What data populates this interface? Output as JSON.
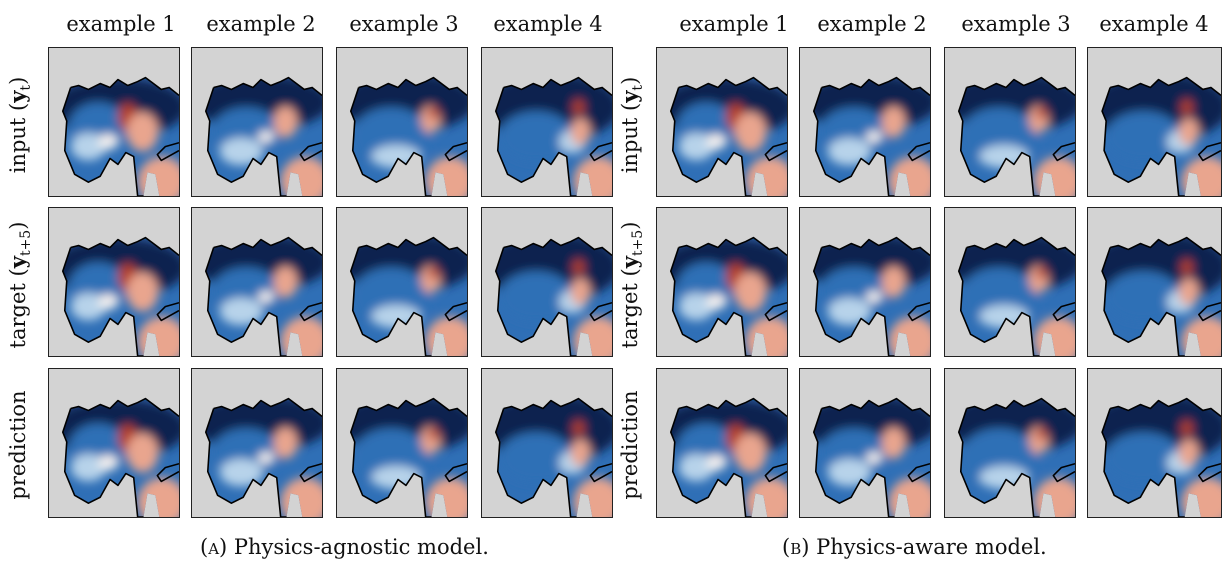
{
  "columns": [
    "example 1",
    "example 2",
    "example 3",
    "example 4"
  ],
  "rows": [
    {
      "base": "input",
      "var": "y",
      "sub": "t"
    },
    {
      "base": "target",
      "var": "y",
      "sub": "t+5"
    },
    {
      "base": "prediction",
      "var": "",
      "sub": ""
    }
  ],
  "panels": [
    {
      "caption_tag": "(a)",
      "caption_text": "Physics-agnostic model."
    },
    {
      "caption_tag": "(b)",
      "caption_text": "Physics-aware model."
    }
  ],
  "colors": {
    "land": "#d3d3d3",
    "deep_blue": "#10234f",
    "mid_blue": "#2f6fb6",
    "light_blue": "#b7d3ea",
    "white": "#f4f1ef",
    "salmon": "#e9a58e",
    "red": "#b3402b",
    "coast": "#000000"
  }
}
